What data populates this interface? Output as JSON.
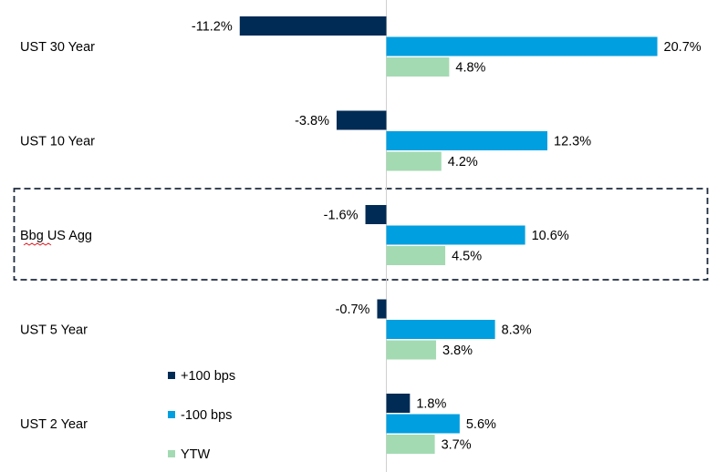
{
  "chart_data": {
    "type": "bar",
    "orientation": "horizontal",
    "title": "",
    "xlabel": "",
    "ylabel": "",
    "xlim": [
      -15,
      30
    ],
    "categories": [
      "UST 30 Year",
      "UST 10 Year",
      "Bbg US Agg",
      "UST 5 Year",
      "UST 2 Year"
    ],
    "highlighted_category": "Bbg US Agg",
    "series": [
      {
        "name": "+100 bps",
        "color": "#002b55",
        "values": [
          -11.2,
          -3.8,
          -1.6,
          -0.7,
          1.8
        ],
        "labels": [
          "-11.2%",
          "-3.8%",
          "-1.6%",
          "-0.7%",
          "1.8%"
        ]
      },
      {
        "name": "-100 bps",
        "color": "#009fe0",
        "values": [
          20.7,
          12.3,
          10.6,
          8.3,
          5.6
        ],
        "labels": [
          "20.7%",
          "12.3%",
          "10.6%",
          "8.3%",
          "5.6%"
        ]
      },
      {
        "name": "YTW",
        "color": "#a3dab2",
        "values": [
          4.8,
          4.2,
          4.5,
          3.8,
          3.7
        ],
        "labels": [
          "4.8%",
          "4.2%",
          "4.5%",
          "3.8%",
          "3.7%"
        ]
      }
    ],
    "legend": {
      "position": "bottom-left",
      "entries": [
        "+100 bps",
        "-100 bps",
        "YTW"
      ]
    },
    "grid": false
  }
}
